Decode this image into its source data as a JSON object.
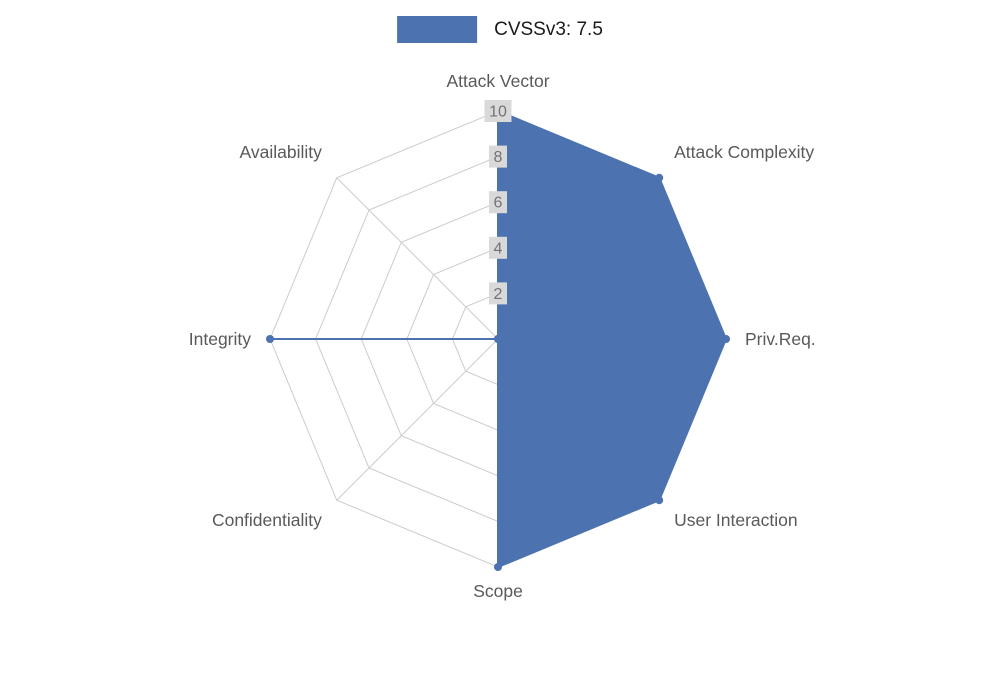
{
  "legend": {
    "label": "CVSSv3: 7.5",
    "swatch_color": "#4C72B0"
  },
  "chart_data": {
    "type": "radar",
    "title": "CVSSv3: 7.5",
    "categories": [
      "Attack Vector",
      "Attack Complexity",
      "Priv.Req.",
      "User Interaction",
      "Scope",
      "Confidentiality",
      "Integrity",
      "Availability"
    ],
    "series": [
      {
        "name": "CVSSv3: 7.5",
        "values": [
          10,
          10,
          10,
          10,
          10,
          0,
          10,
          0
        ]
      }
    ],
    "ylim": [
      0,
      10
    ],
    "ticks": [
      2,
      4,
      6,
      8,
      10
    ],
    "grid": true,
    "legend_position": "top-center",
    "colors": {
      "fill": "#4C72B0",
      "stroke": "#4C72B0",
      "grid": "#cccccc",
      "axis_label": "#595959",
      "tick_text": "#737373",
      "tick_bg": "#d9d9d9",
      "background": "#ffffff"
    }
  }
}
